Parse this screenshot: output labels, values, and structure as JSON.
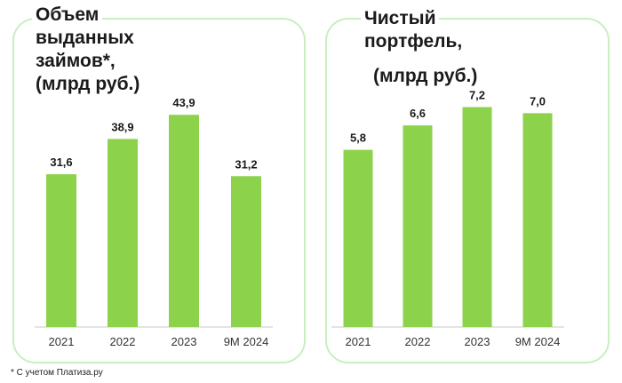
{
  "colors": {
    "bar": "#8dd24b",
    "border": "#c9eec0",
    "baseline": "#c8c8c8",
    "text": "#1a1a1a"
  },
  "chart_data": [
    {
      "type": "bar",
      "title_lines": [
        "Объем",
        "выданных",
        "займов*,",
        "(млрд руб.)"
      ],
      "categories": [
        "2021",
        "2022",
        "2023",
        "9M 2024"
      ],
      "values": [
        31.6,
        38.9,
        43.9,
        31.2
      ],
      "value_labels": [
        "31,6",
        "38,9",
        "43,9",
        "31,2"
      ],
      "ylim": [
        0,
        50
      ],
      "grid": false,
      "legend": "none"
    },
    {
      "type": "bar",
      "title_lines": [
        "Чистый",
        "портфель,",
        "(млрд руб.)"
      ],
      "categories": [
        "2021",
        "2022",
        "2023",
        "9M 2024"
      ],
      "values": [
        5.8,
        6.6,
        7.2,
        7.0
      ],
      "value_labels": [
        "5,8",
        "6,6",
        "7,2",
        "7,0"
      ],
      "ylim": [
        0,
        8
      ],
      "grid": false,
      "legend": "none"
    }
  ],
  "footnote": "* С учетом Платиза.ру"
}
